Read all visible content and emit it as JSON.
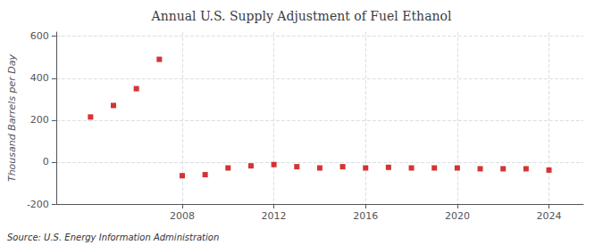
{
  "chart_data": {
    "type": "scatter",
    "title": "Annual U.S. Supply Adjustment of Fuel Ethanol",
    "ylabel": "Thousand Barrels per Day",
    "source": "Source: U.S. Energy Information Administration",
    "x": [
      2004,
      2005,
      2006,
      2007,
      2008,
      2009,
      2010,
      2011,
      2012,
      2013,
      2014,
      2015,
      2016,
      2017,
      2018,
      2019,
      2020,
      2021,
      2022,
      2023,
      2024
    ],
    "values": [
      215,
      270,
      350,
      490,
      -65,
      -60,
      -28,
      -18,
      -12,
      -22,
      -28,
      -22,
      -28,
      -25,
      -28,
      -28,
      -28,
      -32,
      -32,
      -32,
      -38
    ],
    "color": "#cc0000",
    "marker": "square",
    "xlim": [
      2002.5,
      2025.5
    ],
    "xticks": [
      2008,
      2012,
      2016,
      2020,
      2024
    ],
    "ylim": [
      -200,
      620
    ],
    "yticks": [
      -200,
      0,
      200,
      400,
      600
    ],
    "grid": true
  }
}
